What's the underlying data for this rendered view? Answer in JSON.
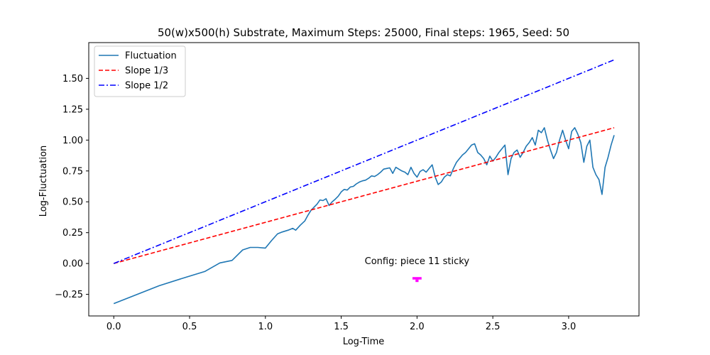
{
  "chart_data": {
    "type": "line",
    "title": "50(w)x500(h) Substrate, Maximum Steps: 25000, Final steps: 1965, Seed: 50",
    "xlabel": "Log-Time",
    "ylabel": "Log-Fluctuation",
    "xlim": [
      -0.165,
      3.464
    ],
    "ylim": [
      -0.425,
      1.79
    ],
    "xticks": [
      {
        "value": 0.0,
        "label": "0.0"
      },
      {
        "value": 0.5,
        "label": "0.5"
      },
      {
        "value": 1.0,
        "label": "1.0"
      },
      {
        "value": 1.5,
        "label": "1.5"
      },
      {
        "value": 2.0,
        "label": "2.0"
      },
      {
        "value": 2.5,
        "label": "2.5"
      },
      {
        "value": 3.0,
        "label": "3.0"
      }
    ],
    "yticks": [
      {
        "value": -0.25,
        "label": "−0.25"
      },
      {
        "value": 0.0,
        "label": "0.00"
      },
      {
        "value": 0.25,
        "label": "0.25"
      },
      {
        "value": 0.5,
        "label": "0.50"
      },
      {
        "value": 0.75,
        "label": "0.75"
      },
      {
        "value": 1.0,
        "label": "1.00"
      },
      {
        "value": 1.25,
        "label": "1.25"
      },
      {
        "value": 1.5,
        "label": "1.50"
      }
    ],
    "legend_position": "top-left",
    "grid": false,
    "series": [
      {
        "name": "Fluctuation",
        "color": "#1f77b4",
        "style": "solid",
        "x": [
          0.0,
          0.3,
          0.48,
          0.6,
          0.7,
          0.78,
          0.85,
          0.9,
          0.95,
          1.0,
          1.04,
          1.08,
          1.11,
          1.15,
          1.18,
          1.2,
          1.23,
          1.26,
          1.28,
          1.3,
          1.32,
          1.34,
          1.36,
          1.38,
          1.4,
          1.42,
          1.44,
          1.46,
          1.48,
          1.5,
          1.52,
          1.54,
          1.56,
          1.58,
          1.6,
          1.62,
          1.64,
          1.66,
          1.68,
          1.7,
          1.72,
          1.74,
          1.76,
          1.78,
          1.8,
          1.82,
          1.84,
          1.86,
          1.88,
          1.9,
          1.92,
          1.94,
          1.96,
          1.98,
          2.0,
          2.02,
          2.04,
          2.06,
          2.08,
          2.1,
          2.12,
          2.14,
          2.16,
          2.18,
          2.2,
          2.22,
          2.24,
          2.26,
          2.28,
          2.3,
          2.32,
          2.34,
          2.36,
          2.38,
          2.4,
          2.42,
          2.44,
          2.46,
          2.48,
          2.5,
          2.52,
          2.54,
          2.56,
          2.58,
          2.6,
          2.62,
          2.64,
          2.66,
          2.68,
          2.7,
          2.72,
          2.74,
          2.76,
          2.78,
          2.8,
          2.82,
          2.84,
          2.86,
          2.88,
          2.9,
          2.92,
          2.94,
          2.96,
          2.98,
          3.0,
          3.02,
          3.04,
          3.06,
          3.08,
          3.1,
          3.12,
          3.14,
          3.16,
          3.18,
          3.2,
          3.22,
          3.24,
          3.26,
          3.28,
          3.3
        ],
        "y": [
          -0.325,
          -0.18,
          -0.11,
          -0.065,
          0.005,
          0.025,
          0.11,
          0.13,
          0.13,
          0.125,
          0.185,
          0.24,
          0.255,
          0.27,
          0.285,
          0.27,
          0.31,
          0.345,
          0.39,
          0.43,
          0.455,
          0.48,
          0.515,
          0.51,
          0.525,
          0.47,
          0.5,
          0.52,
          0.545,
          0.58,
          0.6,
          0.595,
          0.62,
          0.625,
          0.645,
          0.66,
          0.67,
          0.675,
          0.69,
          0.71,
          0.705,
          0.72,
          0.74,
          0.765,
          0.77,
          0.775,
          0.73,
          0.78,
          0.765,
          0.75,
          0.74,
          0.72,
          0.78,
          0.73,
          0.7,
          0.745,
          0.76,
          0.74,
          0.77,
          0.8,
          0.7,
          0.64,
          0.66,
          0.7,
          0.72,
          0.71,
          0.77,
          0.82,
          0.85,
          0.88,
          0.9,
          0.93,
          0.96,
          0.97,
          0.9,
          0.88,
          0.85,
          0.8,
          0.87,
          0.83,
          0.86,
          0.9,
          0.93,
          0.96,
          0.72,
          0.85,
          0.9,
          0.92,
          0.86,
          0.9,
          0.95,
          0.98,
          1.02,
          0.96,
          1.08,
          1.06,
          1.1,
          1.0,
          0.92,
          0.85,
          0.9,
          1.0,
          1.08,
          1.0,
          0.93,
          1.07,
          1.1,
          1.05,
          0.98,
          0.82,
          0.95,
          1.0,
          0.78,
          0.72,
          0.68,
          0.56,
          0.78,
          0.86,
          0.96,
          1.04
        ]
      },
      {
        "name": "Slope 1/3",
        "color": "#ff0000",
        "style": "dashed",
        "x": [
          0.0,
          3.3
        ],
        "y": [
          0.0,
          1.1
        ]
      },
      {
        "name": "Slope 1/2",
        "color": "#0000ff",
        "style": "dashdot",
        "x": [
          0.0,
          3.3
        ],
        "y": [
          0.0,
          1.65
        ]
      }
    ],
    "annotation": {
      "text": "Config:  piece 11 sticky",
      "x": 2.0,
      "y": 0.0,
      "piece_color": "#ff00ff",
      "piece_center_x": 2.0,
      "piece_top_y": -0.11,
      "piece_cell": 0.02
    }
  }
}
